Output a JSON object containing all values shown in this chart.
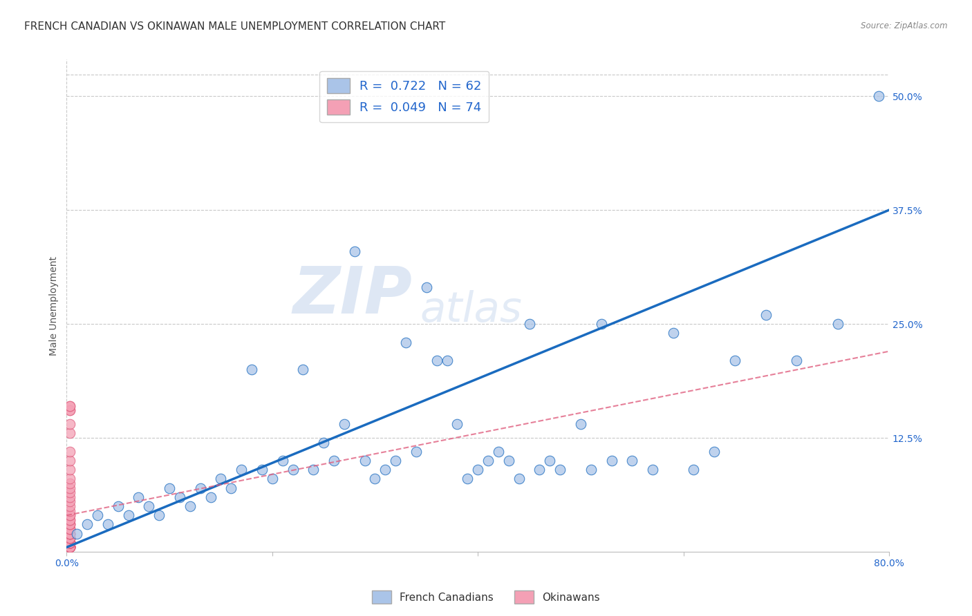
{
  "title": "FRENCH CANADIAN VS OKINAWAN MALE UNEMPLOYMENT CORRELATION CHART",
  "source": "Source: ZipAtlas.com",
  "ylabel": "Male Unemployment",
  "xlim": [
    0,
    0.8
  ],
  "ylim": [
    0,
    0.54
  ],
  "x_ticks": [
    0.0,
    0.2,
    0.4,
    0.6,
    0.8
  ],
  "x_tick_labels": [
    "0.0%",
    "",
    "",
    "",
    "80.0%"
  ],
  "y_tick_labels_right": [
    "12.5%",
    "25.0%",
    "37.5%",
    "50.0%"
  ],
  "y_ticks_right": [
    0.125,
    0.25,
    0.375,
    0.5
  ],
  "grid_color": "#c8c8c8",
  "background_color": "#ffffff",
  "french_canadians": {
    "label": "French Canadians",
    "R": 0.722,
    "N": 62,
    "color": "#aac4e8",
    "line_color": "#1a6bbf",
    "fc_line_start": 0.005,
    "fc_line_end": 0.375,
    "x": [
      0.01,
      0.02,
      0.03,
      0.04,
      0.05,
      0.06,
      0.07,
      0.08,
      0.09,
      0.1,
      0.11,
      0.12,
      0.13,
      0.14,
      0.15,
      0.16,
      0.17,
      0.18,
      0.19,
      0.2,
      0.21,
      0.22,
      0.23,
      0.24,
      0.25,
      0.26,
      0.27,
      0.28,
      0.29,
      0.3,
      0.31,
      0.32,
      0.33,
      0.34,
      0.35,
      0.36,
      0.37,
      0.38,
      0.39,
      0.4,
      0.41,
      0.42,
      0.43,
      0.44,
      0.45,
      0.46,
      0.47,
      0.48,
      0.5,
      0.51,
      0.52,
      0.53,
      0.55,
      0.57,
      0.59,
      0.61,
      0.63,
      0.65,
      0.68,
      0.71,
      0.75,
      0.79
    ],
    "y": [
      0.02,
      0.03,
      0.04,
      0.03,
      0.05,
      0.04,
      0.06,
      0.05,
      0.04,
      0.07,
      0.06,
      0.05,
      0.07,
      0.06,
      0.08,
      0.07,
      0.09,
      0.2,
      0.09,
      0.08,
      0.1,
      0.09,
      0.2,
      0.09,
      0.12,
      0.1,
      0.14,
      0.33,
      0.1,
      0.08,
      0.09,
      0.1,
      0.23,
      0.11,
      0.29,
      0.21,
      0.21,
      0.14,
      0.08,
      0.09,
      0.1,
      0.11,
      0.1,
      0.08,
      0.25,
      0.09,
      0.1,
      0.09,
      0.14,
      0.09,
      0.25,
      0.1,
      0.1,
      0.09,
      0.24,
      0.09,
      0.11,
      0.21,
      0.26,
      0.21,
      0.25,
      0.5
    ]
  },
  "okinawans": {
    "label": "Okinawans",
    "R": 0.049,
    "N": 74,
    "color": "#f4a0b5",
    "line_color": "#e06080",
    "ok_line_start": 0.04,
    "ok_line_end": 0.18,
    "x": [
      0.003,
      0.003,
      0.003,
      0.003,
      0.003,
      0.003,
      0.003,
      0.003,
      0.003,
      0.003,
      0.003,
      0.003,
      0.003,
      0.003,
      0.003,
      0.003,
      0.003,
      0.003,
      0.003,
      0.003,
      0.003,
      0.003,
      0.003,
      0.003,
      0.003,
      0.003,
      0.003,
      0.003,
      0.003,
      0.003,
      0.003,
      0.003,
      0.003,
      0.003,
      0.003,
      0.003,
      0.003,
      0.003,
      0.003,
      0.003,
      0.003,
      0.003,
      0.003,
      0.003,
      0.003,
      0.003,
      0.003,
      0.003,
      0.003,
      0.003,
      0.003,
      0.003,
      0.003,
      0.003,
      0.003,
      0.003,
      0.003,
      0.003,
      0.003,
      0.003,
      0.003,
      0.003,
      0.003,
      0.003,
      0.003,
      0.003,
      0.003,
      0.003,
      0.003,
      0.003,
      0.003,
      0.003,
      0.003,
      0.003
    ],
    "y": [
      0.005,
      0.005,
      0.005,
      0.005,
      0.005,
      0.005,
      0.005,
      0.005,
      0.005,
      0.005,
      0.005,
      0.005,
      0.01,
      0.01,
      0.01,
      0.01,
      0.01,
      0.01,
      0.01,
      0.01,
      0.01,
      0.01,
      0.01,
      0.01,
      0.01,
      0.01,
      0.01,
      0.01,
      0.01,
      0.01,
      0.01,
      0.01,
      0.015,
      0.015,
      0.015,
      0.015,
      0.015,
      0.015,
      0.015,
      0.015,
      0.015,
      0.02,
      0.02,
      0.02,
      0.02,
      0.02,
      0.02,
      0.025,
      0.025,
      0.025,
      0.03,
      0.03,
      0.03,
      0.035,
      0.035,
      0.04,
      0.04,
      0.045,
      0.05,
      0.055,
      0.06,
      0.065,
      0.07,
      0.075,
      0.08,
      0.09,
      0.1,
      0.11,
      0.13,
      0.14,
      0.155,
      0.155,
      0.16,
      0.16
    ]
  },
  "legend": {
    "french_label": "R =  0.722   N = 62",
    "okinawan_label": "R =  0.049   N = 74"
  },
  "watermark_zip": "ZIP",
  "watermark_atlas": "atlas",
  "title_fontsize": 11,
  "axis_label_fontsize": 10,
  "tick_fontsize": 10
}
